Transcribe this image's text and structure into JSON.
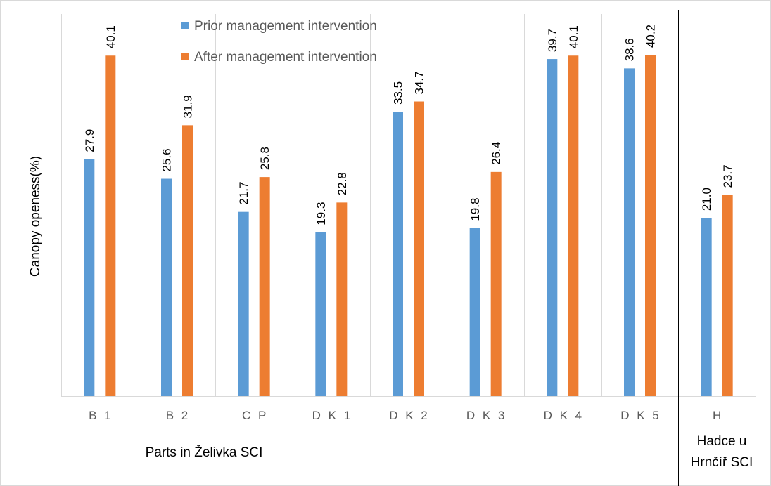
{
  "chart_data": {
    "type": "bar",
    "categories": [
      "B 1",
      "B 2",
      "C P",
      "D K 1",
      "D K 2",
      "D K 3",
      "D K 4",
      "D K 5",
      "H"
    ],
    "series": [
      {
        "name": "Prior management intervention",
        "values": [
          27.9,
          25.6,
          21.7,
          19.3,
          33.5,
          19.8,
          39.7,
          38.6,
          21.0
        ],
        "labels": [
          "27.9",
          "25.6",
          "21.7",
          "19.3",
          "33.5",
          "19.8",
          "39.7",
          "38.6",
          "21.0"
        ],
        "color": "#5b9bd5"
      },
      {
        "name": "After management intervention",
        "values": [
          40.1,
          31.9,
          25.8,
          22.8,
          34.7,
          26.4,
          40.1,
          40.2,
          23.7
        ],
        "labels": [
          "40.1",
          "31.9",
          "25.8",
          "22.8",
          "34.7",
          "26.4",
          "40.1",
          "40.2",
          "23.7"
        ],
        "color": "#ed7d31"
      }
    ],
    "ylabel": "Canopy openess(%)",
    "ylim": [
      0,
      45
    ],
    "y_ticks_shown": false,
    "grid": "vertical category separators",
    "legend_position": "top",
    "groups": [
      {
        "label": "Parts in Želivka SCI",
        "categories": [
          "B 1",
          "B 2",
          "C P",
          "D K 1",
          "D K 2",
          "D K 3",
          "D K 4",
          "D K 5"
        ]
      },
      {
        "label_lines": [
          "Hadce u",
          "Hrnčíř SCI"
        ],
        "categories": [
          "H"
        ]
      }
    ]
  }
}
